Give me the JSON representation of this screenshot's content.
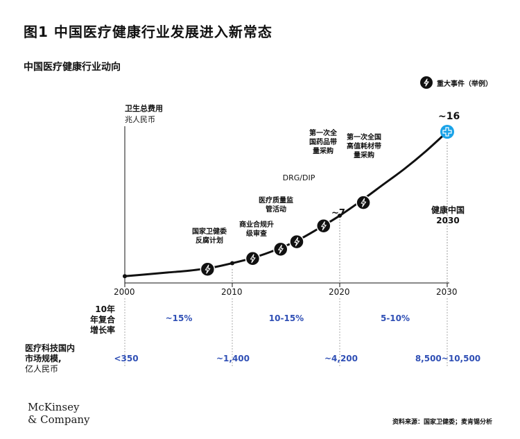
{
  "title": "图1 中国医疗健康行业发展进入新常态",
  "subtitle": "中国医疗健康行业动向",
  "legend": {
    "label": "重大事件（举例）",
    "icon": "lightning-icon"
  },
  "y_axis": {
    "title": "卫生总费用",
    "unit": "兆人民币"
  },
  "chart_data": {
    "type": "line",
    "title": "中国医疗健康行业动向",
    "xlabel": "",
    "ylabel": "卫生总费用 兆人民币",
    "x_ticks": [
      "2000",
      "2010",
      "2020",
      "2030"
    ],
    "xlim": [
      2000,
      2030
    ],
    "ylim": [
      0,
      16
    ],
    "series": [
      {
        "name": "",
        "x": [
          2000,
          2002,
          2004,
          2006,
          2008,
          2010,
          2012,
          2014,
          2016,
          2018,
          2020,
          2022,
          2024,
          2026,
          2028,
          2030
        ],
        "values": [
          0.5,
          0.7,
          0.9,
          1.1,
          1.4,
          1.9,
          2.5,
          3.3,
          4.3,
          5.6,
          7.0,
          8.6,
          10.3,
          12.0,
          13.9,
          16.0
        ]
      }
    ],
    "annotations": [
      {
        "x": 2020,
        "label": "~7"
      },
      {
        "x": 2030,
        "label": "~16"
      }
    ],
    "events": [
      {
        "x": 2007.7,
        "y": 1.25,
        "label": "国家卫健委反腐计划"
      },
      {
        "x": 2011.9,
        "y": 2.4,
        "label": "商业合规升级审查"
      },
      {
        "x": 2014.5,
        "y": 3.4,
        "label": "医疗质量监管活动"
      },
      {
        "x": 2016.0,
        "y": 4.2,
        "label": "DRG/DIP"
      },
      {
        "x": 2018.5,
        "y": 5.9,
        "label": "第一次全国药品带量采购"
      },
      {
        "x": 2022.2,
        "y": 8.4,
        "label": "第一次全国高值耗材带量采购"
      }
    ],
    "target": {
      "x": 2030,
      "label": "健康中国2030"
    }
  },
  "event_labels": {
    "e1": [
      "国家卫健委",
      "反腐计划"
    ],
    "e2": [
      "商业合规升",
      "级审查"
    ],
    "e3": [
      "医疗质量监",
      "管活动"
    ],
    "e4": [
      "DRG/DIP"
    ],
    "e5": [
      "第一次全",
      "国药品带",
      "量采购"
    ],
    "e6": [
      "第一次全国",
      "高值耗材带",
      "量采购"
    ]
  },
  "target_label": [
    "健康中国",
    "2030"
  ],
  "cagr": {
    "label": [
      "10年",
      "年复合",
      "增长率"
    ],
    "values": [
      "~15%",
      "10-15%",
      "5-10%"
    ]
  },
  "market": {
    "label": [
      "医疗科技国内",
      "市场规模,"
    ],
    "unit": "亿人民币",
    "values": [
      "<350",
      "~1,400",
      "~4,200",
      "8,500~10,500"
    ]
  },
  "logo": [
    "McKinsey",
    "& Company"
  ],
  "source": "资料来源：国家卫健委；麦肯锡分析",
  "colors": {
    "accent_blue": "#2f4fb5",
    "target_icon": "#1aa3e8",
    "line": "#111111"
  }
}
